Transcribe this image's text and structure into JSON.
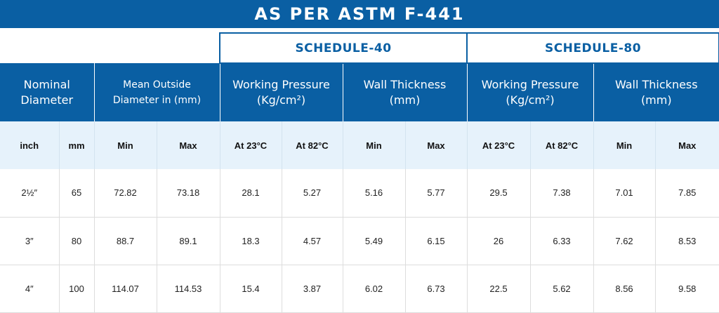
{
  "title": "AS PER ASTM F-441",
  "schedule_40": "SCHEDULE-40",
  "schedule_80": "SCHEDULE-80",
  "headers": {
    "nominal_diameter": [
      "Nominal",
      "Diameter"
    ],
    "mean_od": [
      "Mean Outside",
      "Diameter in (mm)"
    ],
    "working_pressure": [
      "Working Pressure",
      "(Kg/cm²)"
    ],
    "wall_thickness": [
      "Wall Thickness",
      "(mm)"
    ]
  },
  "subheaders": [
    "inch",
    "mm",
    "Min",
    "Max",
    "At 23°C",
    "At 82°C",
    "Min",
    "Max",
    "At 23°C",
    "At 82°C",
    "Min",
    "Max"
  ],
  "rows": [
    [
      "2½″",
      "65",
      "72.82",
      "73.18",
      "28.1",
      "5.27",
      "5.16",
      "5.77",
      "29.5",
      "7.38",
      "7.01",
      "7.85"
    ],
    [
      "3″",
      "80",
      "88.7",
      "89.1",
      "18.3",
      "4.57",
      "5.49",
      "6.15",
      "26",
      "6.33",
      "7.62",
      "8.53"
    ],
    [
      "4″",
      "100",
      "114.07",
      "114.53",
      "15.4",
      "3.87",
      "6.02",
      "6.73",
      "22.5",
      "5.62",
      "8.56",
      "9.58"
    ]
  ]
}
